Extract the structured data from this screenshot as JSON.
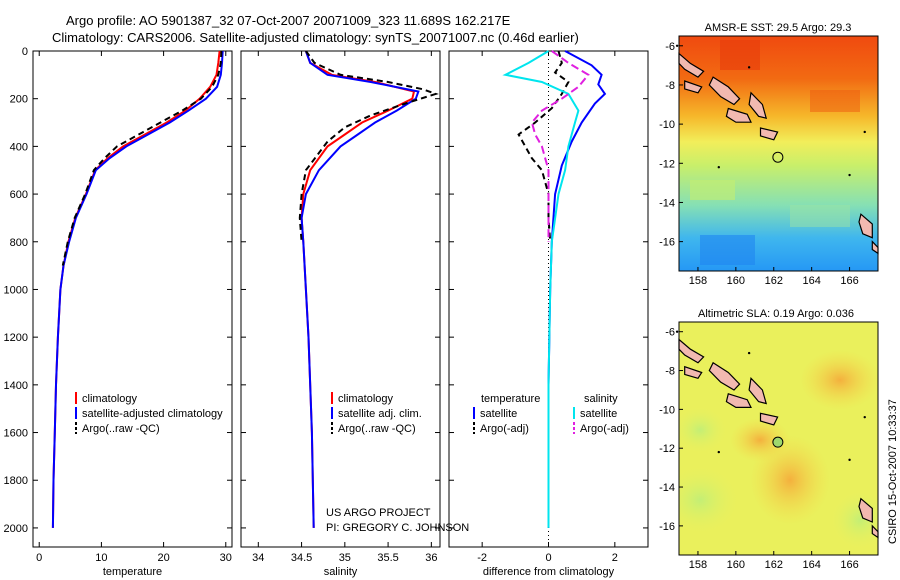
{
  "header": {
    "line1": "Argo profile: AO 5901387_32 07-Oct-2007 20071009_323 11.689S 162.217E",
    "line2": "Climatology: CARS2006. Satellite-adjusted climatology: synTS_20071007.nc (0.46d earlier)"
  },
  "credit": {
    "project": "US ARGO PROJECT",
    "pi": "PI: GREGORY C. JOHNSON"
  },
  "timestamp": "CSIRO 15-Oct-2007 10:33:37",
  "chart_data": [
    {
      "type": "line",
      "id": "temperature",
      "xlabel": "temperature",
      "ylabel": "",
      "xlim": [
        -1,
        31
      ],
      "ylim": [
        2080,
        0
      ],
      "xticks": [
        0,
        10,
        20,
        30
      ],
      "yticks": [
        0,
        200,
        400,
        600,
        800,
        1000,
        1200,
        1400,
        1600,
        1800,
        2000
      ],
      "legend": [
        "climatology",
        "satellite-adjusted climatology",
        "Argo(..raw -QC)"
      ],
      "series": [
        {
          "name": "climatology",
          "color": "#ff0000",
          "dash": "",
          "x": [
            29.0,
            28.8,
            28.5,
            27.5,
            25.8,
            23.5,
            20.5,
            17.0,
            13.5,
            11.0,
            9.0,
            7.5,
            5.8,
            4.7,
            3.9,
            3.4,
            3.0,
            2.7,
            2.5,
            2.3,
            2.2
          ],
          "y": [
            0,
            50,
            100,
            150,
            200,
            250,
            300,
            350,
            400,
            450,
            500,
            600,
            700,
            800,
            900,
            1000,
            1200,
            1400,
            1600,
            1800,
            2000
          ]
        },
        {
          "name": "satellite-adjusted climatology",
          "color": "#0000ff",
          "dash": "",
          "x": [
            29.5,
            29.4,
            29.2,
            28.6,
            26.8,
            24.0,
            21.0,
            17.5,
            14.0,
            11.3,
            9.1,
            7.6,
            5.9,
            4.8,
            3.9,
            3.4,
            3.0,
            2.7,
            2.5,
            2.3,
            2.2
          ],
          "y": [
            0,
            50,
            100,
            150,
            200,
            250,
            300,
            350,
            400,
            450,
            500,
            600,
            700,
            800,
            900,
            1000,
            1200,
            1400,
            1600,
            1800,
            2000
          ]
        },
        {
          "name": "Argo(..raw -QC)",
          "color": "#000000",
          "dash": "6,4",
          "x": [
            29.3,
            29.2,
            28.8,
            27.8,
            26.0,
            23.0,
            19.5,
            16.0,
            12.5,
            10.5,
            8.8,
            7.4,
            5.7,
            4.6,
            3.8
          ],
          "y": [
            0,
            50,
            100,
            150,
            200,
            250,
            300,
            350,
            400,
            450,
            500,
            600,
            700,
            800,
            900
          ]
        }
      ]
    },
    {
      "type": "line",
      "id": "salinity",
      "xlabel": "salinity",
      "ylabel": "",
      "xlim": [
        33.8,
        36.1
      ],
      "ylim": [
        2080,
        0
      ],
      "xticks": [
        34,
        34.5,
        35,
        35.5,
        36
      ],
      "xticklabels": [
        "34",
        "34.5",
        "35",
        "35.5",
        "36"
      ],
      "legend": [
        "climatology",
        "satellite adj. clim.",
        "Argo(..raw -QC)"
      ],
      "series": [
        {
          "name": "climatology",
          "color": "#ff0000",
          "dash": "",
          "x": [
            34.55,
            34.6,
            34.85,
            35.35,
            35.8,
            35.78,
            35.5,
            35.2,
            35.0,
            34.8,
            34.6,
            34.52,
            34.5,
            34.52,
            34.55,
            34.58,
            34.6,
            34.62,
            34.63,
            34.64
          ],
          "y": [
            0,
            50,
            100,
            130,
            170,
            200,
            250,
            300,
            350,
            400,
            500,
            600,
            700,
            800,
            1000,
            1200,
            1400,
            1600,
            1800,
            2000
          ]
        },
        {
          "name": "satellite adj. clim.",
          "color": "#0000ff",
          "dash": "",
          "x": [
            34.55,
            34.6,
            34.8,
            35.3,
            35.85,
            35.82,
            35.6,
            35.35,
            35.15,
            34.95,
            34.7,
            34.55,
            34.5,
            34.52,
            34.55,
            34.58,
            34.6,
            34.62,
            34.63,
            34.64
          ],
          "y": [
            0,
            50,
            100,
            130,
            170,
            200,
            250,
            300,
            350,
            400,
            500,
            600,
            700,
            800,
            1000,
            1200,
            1400,
            1600,
            1800,
            2000
          ]
        },
        {
          "name": "Argo(..raw -QC)",
          "color": "#000000",
          "dash": "6,4",
          "x": [
            34.55,
            34.65,
            34.95,
            35.5,
            35.9,
            36.05,
            35.7,
            35.3,
            35.0,
            34.8,
            34.55,
            34.5,
            34.48,
            34.5
          ],
          "y": [
            0,
            50,
            100,
            130,
            160,
            180,
            220,
            270,
            320,
            380,
            500,
            600,
            700,
            800
          ]
        }
      ]
    },
    {
      "type": "line",
      "id": "difference",
      "xlabel": "difference from climatology",
      "ylabel": "",
      "xlim": [
        -3,
        3
      ],
      "ylim": [
        2080,
        0
      ],
      "xticks": [
        -2,
        0,
        2
      ],
      "legend_col1_title": "temperature",
      "legend_col2_title": "salinity",
      "legend": [
        "satellite",
        "Argo(-adj)",
        "satellite",
        "Argo(-adj)"
      ],
      "series": [
        {
          "name": "temperature satellite",
          "color": "#0000ff",
          "dash": "",
          "x": [
            0.5,
            1.3,
            1.6,
            1.5,
            1.7,
            1.4,
            1.0,
            0.7,
            0.4,
            0.2,
            0.1,
            0.05,
            0.0,
            0.0,
            0.0
          ],
          "y": [
            0,
            60,
            100,
            140,
            180,
            220,
            300,
            380,
            480,
            600,
            800,
            1000,
            1400,
            1800,
            2000
          ]
        },
        {
          "name": "temperature Argo(-adj)",
          "color": "#000000",
          "dash": "6,4",
          "x": [
            0.3,
            0.4,
            0.2,
            0.6,
            0.4,
            0.1,
            -0.4,
            -0.9,
            -0.7,
            -0.5,
            -0.2,
            0.0,
            0.0,
            0.05
          ],
          "y": [
            0,
            50,
            90,
            130,
            180,
            240,
            300,
            350,
            400,
            450,
            500,
            600,
            700,
            800
          ]
        },
        {
          "name": "salinity satellite",
          "color": "#00e5ee",
          "dash": "",
          "x": [
            0.0,
            -0.6,
            -1.3,
            -0.2,
            0.6,
            0.9,
            0.8,
            0.6,
            0.5,
            0.3,
            0.1,
            0.05,
            0.0,
            0.0,
            0.0
          ],
          "y": [
            0,
            50,
            100,
            130,
            180,
            250,
            300,
            400,
            500,
            600,
            800,
            1000,
            1400,
            1800,
            2000
          ]
        },
        {
          "name": "salinity Argo(-adj)",
          "color": "#e020e0",
          "dash": "8,4",
          "x": [
            0.1,
            0.6,
            1.2,
            0.9,
            0.4,
            -0.2,
            -0.5,
            -0.4,
            -0.2,
            -0.1,
            0.0,
            0.0,
            0.0,
            0.0
          ],
          "y": [
            0,
            50,
            100,
            150,
            200,
            250,
            300,
            350,
            400,
            450,
            500,
            600,
            700,
            800
          ]
        }
      ]
    },
    {
      "type": "heatmap",
      "id": "sst-map",
      "title": "AMSR-E SST: 29.5 Argo: 29.3",
      "xlim": [
        157,
        167.5
      ],
      "ylim": [
        -17.5,
        -5.5
      ],
      "xticks": [
        158,
        160,
        162,
        164,
        166
      ],
      "yticks": [
        -6,
        -8,
        -10,
        -12,
        -14,
        -16
      ],
      "marker": {
        "lon": 162.217,
        "lat": -11.689
      }
    },
    {
      "type": "heatmap",
      "id": "sla-map",
      "title": "Altimetric SLA: 0.19 Argo: 0.036",
      "xlim": [
        157,
        167.5
      ],
      "ylim": [
        -17.5,
        -5.5
      ],
      "xticks": [
        158,
        160,
        162,
        164,
        166
      ],
      "yticks": [
        -6,
        -8,
        -10,
        -12,
        -14,
        -16
      ],
      "marker": {
        "lon": 162.217,
        "lat": -11.689
      }
    }
  ]
}
